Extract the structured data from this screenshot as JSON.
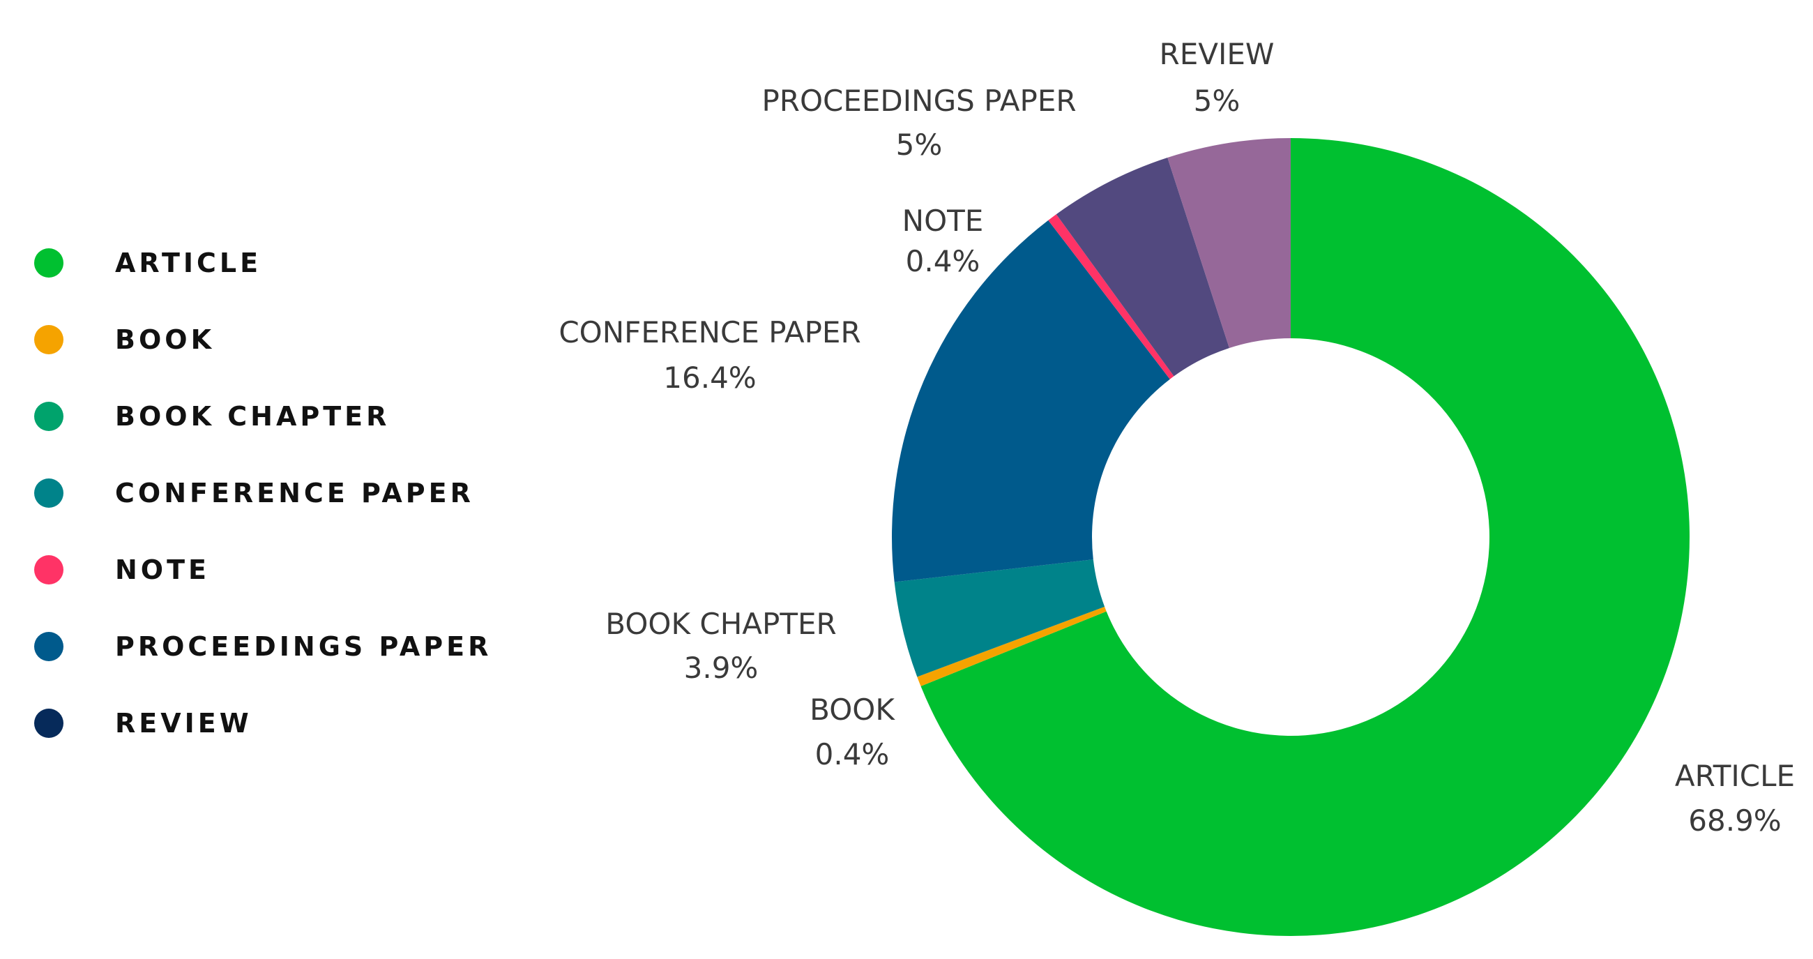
{
  "chart_data": {
    "type": "pie",
    "variant": "donut",
    "title": "",
    "legend_placement": "left",
    "legend": [
      {
        "label": "ARTICLE",
        "color": "#00c030"
      },
      {
        "label": "BOOK",
        "color": "#f5a300"
      },
      {
        "label": "BOOK CHAPTER",
        "color": "#00a36c"
      },
      {
        "label": "CONFERENCE PAPER",
        "color": "#00838a"
      },
      {
        "label": "NOTE",
        "color": "#ff3366"
      },
      {
        "label": "PROCEEDINGS PAPER",
        "color": "#005a8c"
      },
      {
        "label": "REVIEW",
        "color": "#062a5a"
      }
    ],
    "slices": [
      {
        "name": "ARTICLE",
        "value_label": "68.9%",
        "value": 68.9,
        "color": "#00c030"
      },
      {
        "name": "BOOK",
        "value_label": "0.4%",
        "value": 0.4,
        "color": "#f5a300"
      },
      {
        "name": "BOOK CHAPTER",
        "value_label": "3.9%",
        "value": 3.9,
        "color": "#00838a"
      },
      {
        "name": "CONFERENCE PAPER",
        "value_label": "16.4%",
        "value": 16.4,
        "color": "#005a8c"
      },
      {
        "name": "NOTE",
        "value_label": "0.4%",
        "value": 0.4,
        "color": "#ff3366"
      },
      {
        "name": "PROCEEDINGS PAPER",
        "value_label": "5%",
        "value": 5,
        "color": "#52497f"
      },
      {
        "name": "REVIEW",
        "value_label": "5%",
        "value": 5,
        "color": "#966899"
      }
    ]
  }
}
